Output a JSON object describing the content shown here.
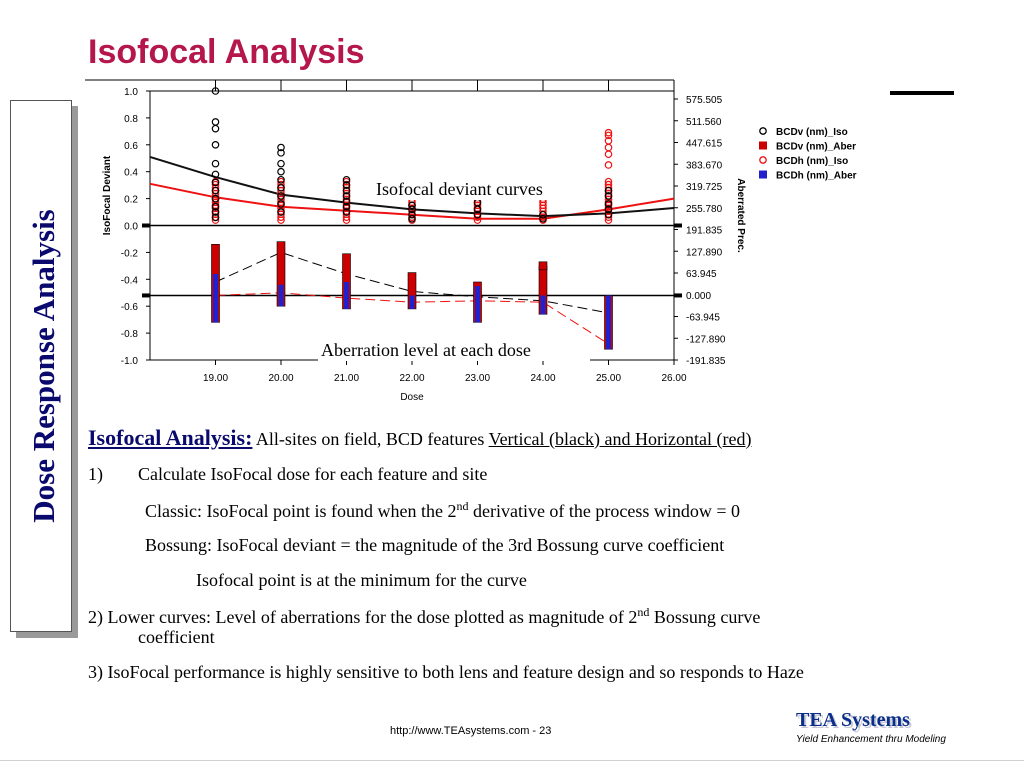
{
  "slide": {
    "title": "Isofocal Analysis",
    "side_label": "Dose Response Analysis",
    "paragraphs": {
      "lead_label": "Isofocal Analysis:",
      "lead_text": " All-sites on field, BCD features ",
      "lead_link": "Vertical (black) and Horizontal (red)",
      "item1_num": "1)",
      "item1_text": "Calculate IsoFocal dose for each feature and site",
      "classic_a": "Classic: IsoFocal point is found when the 2",
      "classic_sup": "nd",
      "classic_b": " derivative of the process window = 0",
      "bossung": "Bossung: IsoFocal deviant = the magnitude of the 3rd Bossung curve coefficient",
      "min": "Isofocal point is at the minimum for the curve",
      "item2_a": "2) Lower curves: Level of aberrations for the dose plotted as magnitude of 2",
      "item2_sup": "nd",
      "item2_b": " Bossung curve",
      "item2_c": "coefficient",
      "item3": "3) IsoFocal performance is highly sensitive to both lens and feature design and so responds to Haze"
    },
    "footer": {
      "url": "http://www.TEAsystems.com - 23",
      "brand": "TEA Systems",
      "tagline": "Yield Enhancement thru Modeling"
    }
  },
  "chart_data": {
    "type": "scatter",
    "xlabel": "Dose",
    "ylabel_left": "IsoFocal Deviant",
    "ylabel_right": "Aberrated Prec.",
    "xlim": [
      18.0,
      26.0
    ],
    "ylim_left": [
      -1.0,
      1.0
    ],
    "ylim_right": [
      -191.835,
      575.505
    ],
    "x_ticks": [
      "19.00",
      "20.00",
      "21.00",
      "22.00",
      "23.00",
      "24.00",
      "25.00",
      "26.00"
    ],
    "y_ticks_left": [
      "1.0",
      "0.8",
      "0.6",
      "0.4",
      "0.2",
      "0.0",
      "-0.2",
      "-0.4",
      "-0.6",
      "-0.8",
      "-1.0"
    ],
    "y_ticks_right": [
      "575.505",
      "511.560",
      "447.615",
      "383.670",
      "319.725",
      "255.780",
      "191.835",
      "127.890",
      "63.945",
      "0.000",
      "-63.945",
      "-127.890",
      "-191.835"
    ],
    "grid": true,
    "legend_position": "right",
    "annotations": [
      "Isofocal deviant curves",
      "Aberration level at each dose"
    ],
    "legend": [
      {
        "name": "BCDv (nm)_Iso",
        "marker": "circle-open",
        "color": "#000000"
      },
      {
        "name": "BCDv (nm)_Aber",
        "marker": "square-filled",
        "color": "#cc0000"
      },
      {
        "name": "BCDh (nm)_Iso",
        "marker": "circle-open",
        "color": "#ee1111"
      },
      {
        "name": "BCDh (nm)_Aber",
        "marker": "square-filled",
        "color": "#2020cc"
      }
    ],
    "series": [
      {
        "name": "BCDv (nm)_Iso",
        "x": [
          19,
          20,
          21,
          22,
          23,
          24,
          25
        ],
        "points": [
          [
            0.06,
            1.0
          ],
          [
            0.06,
            0.77
          ],
          [
            0.06,
            0.72
          ],
          [
            0.06,
            0.6
          ],
          [
            0.06,
            0.46
          ],
          [
            0.06,
            0.38
          ],
          [
            0.06,
            0.32
          ],
          [
            0.06,
            0.26
          ],
          [
            0.06,
            0.2
          ],
          [
            0.06,
            0.14
          ],
          [
            0.06,
            0.1
          ],
          [
            0.06,
            0.06
          ],
          [
            0.08,
            0.58
          ],
          [
            0.08,
            0.54
          ],
          [
            0.08,
            0.46
          ],
          [
            0.08,
            0.4
          ],
          [
            0.08,
            0.34
          ],
          [
            0.08,
            0.28
          ],
          [
            0.08,
            0.22
          ],
          [
            0.08,
            0.16
          ],
          [
            0.08,
            0.1
          ],
          [
            0.06,
            0.34
          ],
          [
            0.06,
            0.3
          ],
          [
            0.06,
            0.26
          ],
          [
            0.06,
            0.22
          ],
          [
            0.06,
            0.18
          ],
          [
            0.06,
            0.14
          ],
          [
            0.06,
            0.1
          ],
          [
            0.05,
            0.15
          ],
          [
            0.05,
            0.12
          ],
          [
            0.05,
            0.08
          ],
          [
            0.05,
            0.05
          ],
          [
            0.05,
            0.17
          ],
          [
            0.05,
            0.12
          ],
          [
            0.05,
            0.08
          ],
          [
            0.05,
            0.33
          ],
          [
            0.05,
            0.08
          ],
          [
            0.05,
            0.05
          ],
          [
            0.06,
            0.26
          ],
          [
            0.06,
            0.22
          ],
          [
            0.06,
            0.16
          ],
          [
            0.06,
            0.12
          ],
          [
            0.06,
            0.08
          ]
        ],
        "line": [
          [
            18,
            0.51
          ],
          [
            19,
            0.36
          ],
          [
            20,
            0.23
          ],
          [
            21,
            0.17
          ],
          [
            22,
            0.12
          ],
          [
            23,
            0.09
          ],
          [
            24,
            0.07
          ],
          [
            25,
            0.09
          ],
          [
            26,
            0.13
          ]
        ]
      },
      {
        "name": "BCDh (nm)_Iso",
        "line": [
          [
            18,
            0.31
          ],
          [
            19,
            0.21
          ],
          [
            20,
            0.14
          ],
          [
            21,
            0.11
          ],
          [
            22,
            0.08
          ],
          [
            23,
            0.05
          ],
          [
            24,
            0.05
          ],
          [
            25,
            0.12
          ],
          [
            26,
            0.2
          ]
        ]
      },
      {
        "name": "BCDv (nm)_Aber",
        "x": [
          19,
          20,
          21,
          22,
          23,
          24,
          25
        ],
        "ranges": [
          [
            -0.72,
            -0.14
          ],
          [
            -0.6,
            -0.12
          ],
          [
            -0.62,
            -0.21
          ],
          [
            -0.62,
            -0.35
          ],
          [
            -0.72,
            -0.42
          ],
          [
            -0.66,
            -0.3
          ],
          [
            -0.92,
            -0.52
          ]
        ],
        "trend": [
          [
            19,
            -0.42
          ],
          [
            20,
            -0.2
          ],
          [
            21,
            -0.36
          ],
          [
            22,
            -0.49
          ],
          [
            23,
            -0.53
          ],
          [
            24,
            -0.56
          ],
          [
            25,
            -0.65
          ]
        ]
      },
      {
        "name": "BCDh (nm)_Aber",
        "x": [
          19,
          20,
          21,
          22,
          23,
          24,
          25
        ],
        "ranges": [
          [
            -0.72,
            -0.36
          ],
          [
            -0.6,
            -0.44
          ],
          [
            -0.62,
            -0.42
          ],
          [
            -0.62,
            -0.52
          ],
          [
            -0.72,
            -0.45
          ],
          [
            -0.66,
            -0.52
          ],
          [
            -0.92,
            -0.52
          ]
        ],
        "trend": [
          [
            19,
            -0.52
          ],
          [
            20,
            -0.5
          ],
          [
            21,
            -0.54
          ],
          [
            22,
            -0.57
          ],
          [
            23,
            -0.56
          ],
          [
            24,
            -0.57
          ],
          [
            25,
            -0.88
          ]
        ]
      }
    ]
  }
}
